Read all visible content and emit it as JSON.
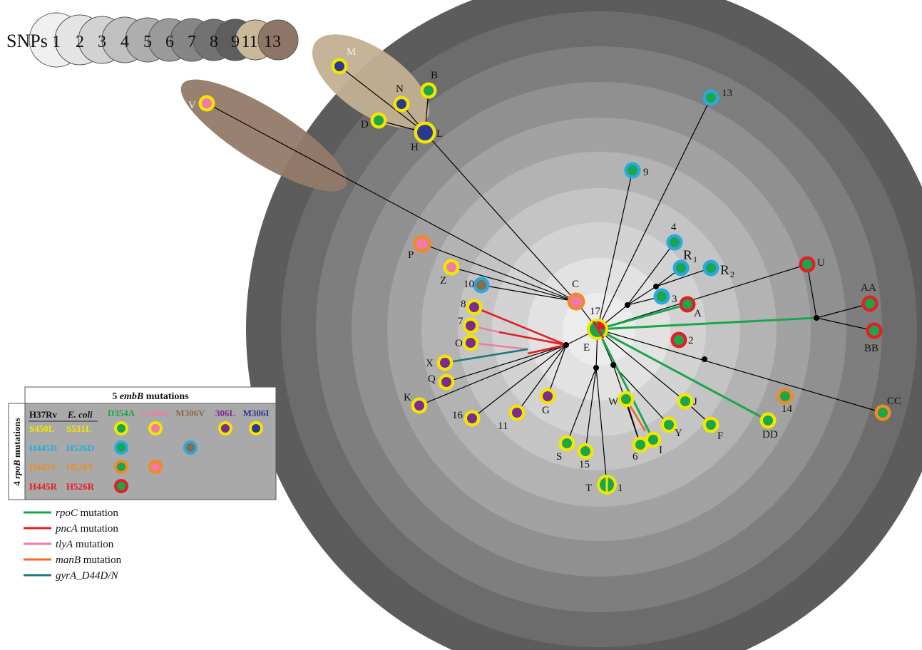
{
  "snp_scale": {
    "title": "SNPs",
    "steps": [
      {
        "label": "1",
        "color": "#f0f0f0"
      },
      {
        "label": "2",
        "color": "#e4e4e4"
      },
      {
        "label": "3",
        "color": "#d2d2d2"
      },
      {
        "label": "4",
        "color": "#c0c0c0"
      },
      {
        "label": "5",
        "color": "#aeaeae"
      },
      {
        "label": "6",
        "color": "#9a9a9a"
      },
      {
        "label": "7",
        "color": "#868686"
      },
      {
        "label": "8",
        "color": "#727272"
      },
      {
        "label": "9",
        "color": "#5e5e5e"
      },
      {
        "label": "11",
        "color": "#c9b89a"
      },
      {
        "label": "13",
        "color": "#8e7565"
      }
    ]
  },
  "rings": [
    "#ececec",
    "#e2e2e2",
    "#d3d3d3",
    "#c4c4c4",
    "#b3b3b3",
    "#a2a2a2",
    "#909090",
    "#7e7e7e",
    "#6c6c6c",
    "#5c5c5c"
  ],
  "clusters": [
    {
      "id": "cluster-11",
      "color": "#c2b091"
    },
    {
      "id": "cluster-13",
      "color": "#927a69"
    }
  ],
  "node_labels": {
    "M": "M",
    "N": "N",
    "B": "B",
    "D": "D",
    "H": "H",
    "L": "L",
    "V": "V",
    "n13": "13",
    "n9": "9",
    "n4": "4",
    "R1": "R",
    "R1sub": "1",
    "R2": "R",
    "R2sub": "2",
    "U": "U",
    "AA": "AA",
    "BB": "BB",
    "P": "P",
    "Z": "Z",
    "n10": "10",
    "C": "C",
    "n17": "17",
    "n3": "3",
    "A": "A",
    "n8": "8",
    "n7": "7",
    "O": "O",
    "E": "E",
    "n2": "2",
    "X": "X",
    "Q": "Q",
    "K": "K",
    "n16": "16",
    "n11": "11",
    "G": "G",
    "W": "W",
    "J": "J",
    "Y": "Y",
    "F": "F",
    "I": "I",
    "n6": "6",
    "S": "S",
    "n15": "15",
    "DD": "DD",
    "n14": "14",
    "CC": "CC",
    "T": "T",
    "n1": "1"
  },
  "table": {
    "embb_title_pre": "5 ",
    "embb_title_em": "embB",
    "embb_title_post": " mutations",
    "rpob_title_pre": "4 ",
    "rpob_title_em": "rpoB",
    "rpob_title_post": " mutations",
    "header_h37rv": "H37Rv",
    "header_ecoli": "E. coli",
    "embb_cols": [
      {
        "label": "D354A",
        "color": "#1aa64b"
      },
      {
        "label": "G406S",
        "color": "#f07aa8"
      },
      {
        "label": "M306V",
        "color": "#8e6a4a"
      },
      {
        "label": "306L",
        "color": "#7b2c8f"
      },
      {
        "label": "M306I",
        "color": "#2b3990"
      }
    ],
    "rpob_rows": [
      {
        "h37rv": "S450L",
        "ecoli": "S531L",
        "color": "#f2e600"
      },
      {
        "h37rv": "H445D",
        "ecoli": "H526D",
        "color": "#29a9e0"
      },
      {
        "h37rv": "H445Y",
        "ecoli": "H526Y",
        "color": "#f08a24"
      },
      {
        "h37rv": "H445R",
        "ecoli": "H526R",
        "color": "#e31e24"
      }
    ]
  },
  "gene_legend": [
    {
      "gene": "rpoC",
      "suffix": " mutation",
      "color": "#1aa64b"
    },
    {
      "gene": "pncA",
      "suffix": " mutation",
      "color": "#e31e24"
    },
    {
      "gene": "tlyA",
      "suffix": " mutation",
      "color": "#f07aa8"
    },
    {
      "gene": "manB",
      "suffix": " mutation",
      "color": "#f26722"
    },
    {
      "gene": "gyrA_D44D/N",
      "suffix": "",
      "color": "#1b7a7a"
    }
  ]
}
